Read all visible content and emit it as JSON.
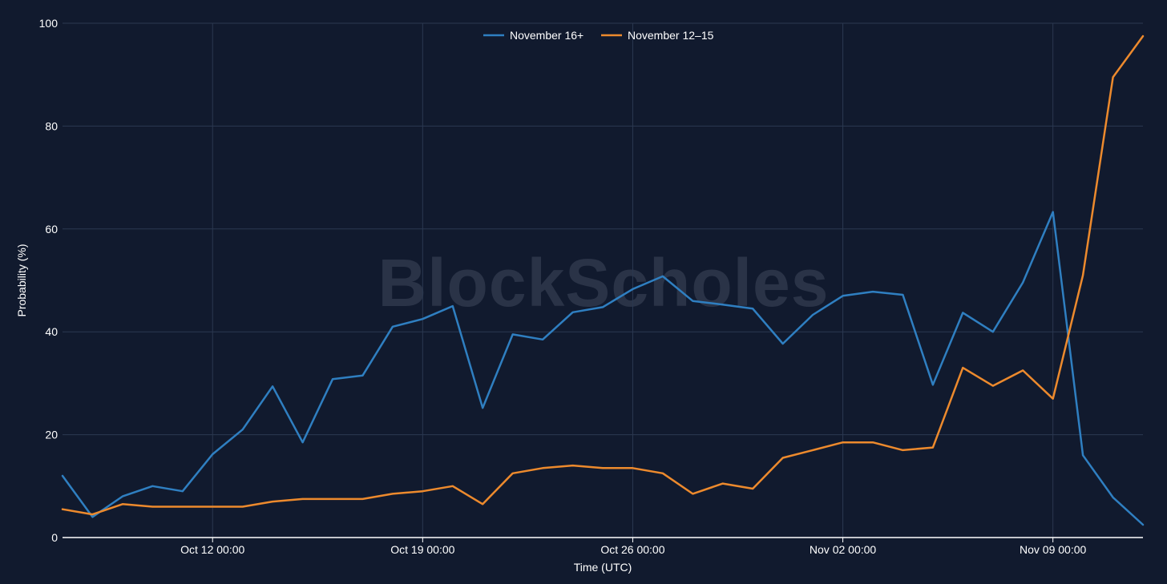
{
  "watermark": "BlockScholes",
  "chart_data": {
    "type": "line",
    "xlabel": "Time (UTC)",
    "ylabel": "Probability (%)",
    "ylim": [
      0,
      100
    ],
    "xlim": [
      "2024-10-07",
      "2024-11-12"
    ],
    "x_ticks": [
      "Oct 12 00:00",
      "Oct 19 00:00",
      "Oct 26 00:00",
      "Nov 02 00:00",
      "Nov 09 00:00"
    ],
    "y_ticks": [
      0,
      20,
      40,
      60,
      80,
      100
    ],
    "legend_position": "top-center",
    "grid": true,
    "x": [
      "2024-10-07",
      "2024-10-08",
      "2024-10-09",
      "2024-10-10",
      "2024-10-11",
      "2024-10-12",
      "2024-10-13",
      "2024-10-14",
      "2024-10-15",
      "2024-10-16",
      "2024-10-17",
      "2024-10-18",
      "2024-10-19",
      "2024-10-20",
      "2024-10-21",
      "2024-10-22",
      "2024-10-23",
      "2024-10-24",
      "2024-10-25",
      "2024-10-26",
      "2024-10-27",
      "2024-10-28",
      "2024-10-29",
      "2024-10-30",
      "2024-10-31",
      "2024-11-01",
      "2024-11-02",
      "2024-11-03",
      "2024-11-04",
      "2024-11-05",
      "2024-11-06",
      "2024-11-07",
      "2024-11-08",
      "2024-11-09",
      "2024-11-10",
      "2024-11-11",
      "2024-11-12"
    ],
    "series": [
      {
        "name": "November 16+",
        "color": "#2f7fc1",
        "values": [
          12,
          4,
          8,
          10,
          9,
          16.2,
          21,
          29.4,
          18.5,
          30.8,
          31.5,
          41,
          42.5,
          45,
          25.2,
          39.5,
          38.5,
          43.8,
          44.8,
          48.3,
          50.8,
          46,
          45.3,
          44.5,
          37.7,
          43.3,
          47,
          47.8,
          47.2,
          29.7,
          43.7,
          40,
          49.6,
          63.3,
          16,
          7.8,
          2.5
        ]
      },
      {
        "name": "November 12–15",
        "color": "#ed8a2d",
        "values": [
          5.5,
          4.5,
          6.5,
          6,
          6,
          6,
          6,
          7,
          7.5,
          7.5,
          7.5,
          8.5,
          9,
          10,
          6.5,
          12.5,
          13.5,
          14,
          13.5,
          13.5,
          12.5,
          8.5,
          10.5,
          9.5,
          15.5,
          17,
          18.5,
          18.5,
          17,
          17.5,
          33,
          29.5,
          32.5,
          27,
          51,
          89.5,
          97.5
        ]
      }
    ]
  }
}
